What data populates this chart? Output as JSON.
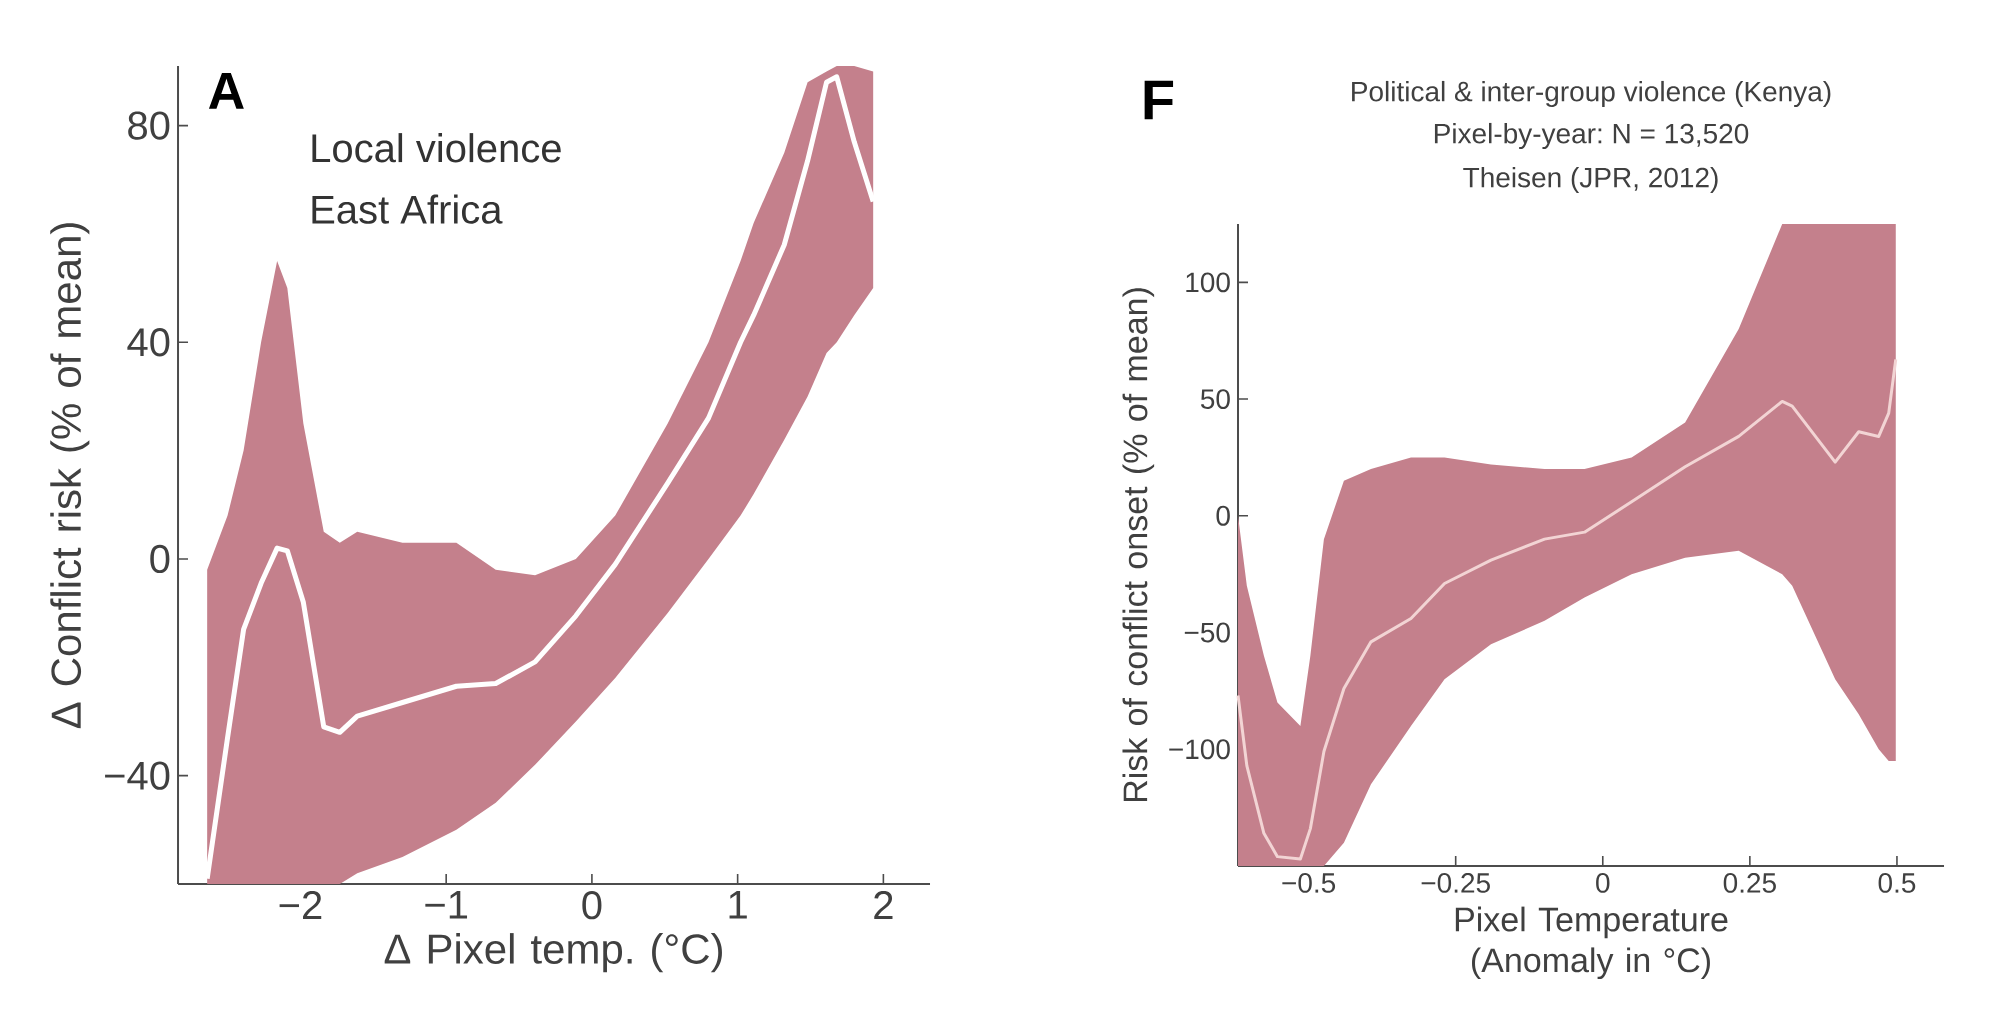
{
  "chart_data": [
    {
      "type": "line",
      "xlabel": "Δ Pixel temp. (°C)",
      "ylabel": "Δ Conflict risk (% of mean)",
      "annotations": [
        "A",
        "Local violence",
        "East Africa"
      ],
      "xlim": [
        -2.84,
        2.32
      ],
      "ylim": [
        -60,
        91
      ],
      "xticks": [
        {
          "value": -2,
          "label": "−2"
        },
        {
          "value": -1,
          "label": "−1"
        },
        0,
        1,
        2
      ],
      "yticks": [
        {
          "value": -40,
          "label": "−40"
        },
        0,
        40,
        80
      ],
      "grid": false,
      "marker": "none",
      "line_style": "solid",
      "series": [
        {
          "color": "#ffffff",
          "x": [
            -2.64,
            -2.5,
            -2.39,
            -2.27,
            -2.16,
            -2.09,
            -1.98,
            -1.84,
            -1.73,
            -1.61,
            -1.3,
            -0.93,
            -0.66,
            -0.39,
            -0.11,
            0.16,
            0.52,
            0.8,
            1.02,
            1.11,
            1.32,
            1.48,
            1.61,
            1.68,
            1.8,
            1.93
          ],
          "values": [
            -59,
            -33,
            -13,
            -4.5,
            2,
            1.5,
            -8,
            -31,
            -32,
            -29,
            -26.5,
            -23.5,
            -23,
            -19,
            -10.5,
            -1,
            14,
            26,
            40,
            45,
            58,
            73.5,
            88,
            89,
            77,
            66
          ],
          "lower": [
            -60,
            -60,
            -60,
            -60,
            -60,
            -60,
            -60,
            -60,
            -60,
            -58,
            -55,
            -50,
            -45,
            -38,
            -30,
            -22,
            -10,
            0,
            8,
            12,
            22,
            30,
            38,
            40,
            45,
            50
          ],
          "upper": [
            -2,
            8,
            20,
            40,
            55,
            50,
            25,
            5,
            3,
            5,
            3,
            3,
            -2,
            -3,
            0,
            8,
            25,
            40,
            55,
            62,
            75,
            88,
            90,
            91,
            91,
            90
          ]
        }
      ]
    },
    {
      "type": "line",
      "title": "Political & inter-group violence (Kenya)",
      "subtitle": "Pixel-by-year: N = 13,520",
      "xlabel": "Pixel Temperature (Anomaly in °C)",
      "ylabel": "Risk of conflict onset (% of mean)",
      "annotations": [
        "F",
        "Theisen (JPR, 2012)"
      ],
      "xlim": [
        -0.62,
        0.58
      ],
      "ylim": [
        -150,
        125
      ],
      "xticks": [
        {
          "value": -0.5,
          "label": "−0.5"
        },
        {
          "value": -0.25,
          "label": "−0.25"
        },
        0,
        0.25,
        0.5
      ],
      "yticks": [
        {
          "value": -100,
          "label": "−100"
        },
        {
          "value": -50,
          "label": "−50"
        },
        0,
        50,
        100
      ],
      "grid": false,
      "marker": "none",
      "line_style": "solid",
      "series": [
        {
          "color": "#f2d4d4",
          "x": [
            -0.62,
            -0.605,
            -0.576,
            -0.553,
            -0.514,
            -0.497,
            -0.474,
            -0.44,
            -0.394,
            -0.326,
            -0.269,
            -0.19,
            -0.099,
            -0.031,
            0.049,
            0.14,
            0.231,
            0.305,
            0.322,
            0.395,
            0.435,
            0.469,
            0.486,
            0.498
          ],
          "values": [
            -77,
            -107,
            -136,
            -146,
            -147,
            -134,
            -101,
            -74,
            -54,
            -44,
            -29,
            -19,
            -10,
            -7,
            6,
            21,
            34,
            49,
            47,
            23,
            36,
            34,
            44,
            67
          ],
          "lower": [
            -150,
            -150,
            -150,
            -150,
            -150,
            -150,
            -150,
            -140,
            -115,
            -90,
            -70,
            -55,
            -45,
            -35,
            -25,
            -18,
            -15,
            -25,
            -30,
            -70,
            -85,
            -100,
            -105,
            -105
          ],
          "upper": [
            0,
            -30,
            -60,
            -80,
            -90,
            -60,
            -10,
            15,
            20,
            25,
            25,
            22,
            20,
            20,
            25,
            40,
            80,
            125,
            125,
            125,
            125,
            125,
            125,
            125
          ]
        }
      ]
    }
  ]
}
